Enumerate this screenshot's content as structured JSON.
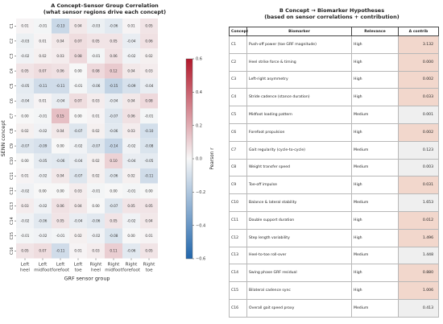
{
  "heatmap_title": "A  Concept–Sensor Group Correlation",
  "heatmap_subtitle": "(what sensor regions drive each concept)",
  "table_title": "B  Concept → Biomarker Hypotheses",
  "table_subtitle": "(based on sensor correlations + contribution)",
  "colors": {
    "negative": "#2166ac",
    "neutral": "#f7f7f7",
    "positive": "#b2182b",
    "relevance_high": "#f2d7cc"
  },
  "chart_data": {
    "type": "heatmap",
    "title": "A  Concept–Sensor Group Correlation",
    "subtitle": "(what sensor regions drive each concept)",
    "xlabel": "GRF sensor group",
    "ylabel": "SENN concept",
    "colorbar_label": "Pearson r",
    "colorbar_range": [
      -0.6,
      0.6
    ],
    "colorbar_ticks": [
      "0.6",
      "0.4",
      "0.2",
      "0.0",
      "−0.2",
      "−0.4",
      "−0.6"
    ],
    "x_categories": [
      "Left\nheel",
      "Left\nmidfoot",
      "Left\nforefoot",
      "Left\ntoe",
      "Right\nheel",
      "Right\nmidfoot",
      "Right\nforefoot",
      "Right\ntoe"
    ],
    "y_categories": [
      "C1",
      "C2",
      "C3",
      "C4",
      "C5",
      "C6",
      "C7",
      "C8",
      "C9",
      "C10",
      "C11",
      "C12",
      "C13",
      "C14",
      "C15",
      "C16"
    ],
    "values": [
      [
        0.01,
        -0.01,
        -0.13,
        0.04,
        -0.03,
        -0.06,
        0.01,
        0.05
      ],
      [
        -0.03,
        0.01,
        0.04,
        0.07,
        0.05,
        0.05,
        -0.04,
        0.06
      ],
      [
        -0.02,
        0.02,
        0.03,
        0.08,
        -0.01,
        0.06,
        -0.02,
        0.02
      ],
      [
        0.05,
        0.07,
        0.06,
        0.0,
        0.08,
        0.12,
        0.04,
        0.03
      ],
      [
        -0.05,
        -0.11,
        -0.11,
        -0.01,
        -0.06,
        -0.15,
        -0.09,
        -0.04
      ],
      [
        -0.04,
        0.01,
        -0.04,
        0.07,
        0.03,
        -0.04,
        0.04,
        0.08
      ],
      [
        -0.0,
        -0.01,
        0.15,
        0.0,
        0.01,
        -0.07,
        0.06,
        -0.01
      ],
      [
        0.02,
        -0.02,
        0.04,
        -0.07,
        0.02,
        -0.06,
        0.03,
        -0.1
      ],
      [
        -0.07,
        -0.09,
        0.0,
        -0.02,
        -0.07,
        -0.14,
        -0.02,
        -0.08
      ],
      [
        -0.0,
        -0.05,
        -0.06,
        -0.04,
        0.02,
        0.1,
        -0.04,
        -0.05
      ],
      [
        0.01,
        -0.02,
        0.04,
        -0.07,
        0.02,
        -0.06,
        0.02,
        -0.11
      ],
      [
        -0.02,
        -0.0,
        -0.0,
        0.03,
        -0.01,
        -0.0,
        -0.01,
        0.0
      ],
      [
        0.03,
        -0.02,
        0.06,
        0.04,
        0.0,
        -0.07,
        0.05,
        0.05
      ],
      [
        -0.02,
        -0.06,
        0.05,
        -0.04,
        -0.06,
        0.05,
        -0.02,
        0.04
      ],
      [
        -0.01,
        -0.02,
        -0.01,
        0.02,
        -0.02,
        -0.08,
        0.0,
        0.01
      ],
      [
        0.05,
        0.07,
        -0.11,
        0.01,
        0.03,
        0.11,
        -0.06,
        0.05
      ]
    ]
  },
  "table": {
    "headers": [
      "Concept",
      "Biomarker",
      "Relevance",
      "Δ contrib"
    ],
    "rows": [
      {
        "concept": "C1",
        "biomarker": "Push-off power (toe GRF magnitude)",
        "relevance": "High",
        "contrib": "3.132"
      },
      {
        "concept": "C2",
        "biomarker": "Heel strike force & timing",
        "relevance": "High",
        "contrib": "0.000"
      },
      {
        "concept": "C3",
        "biomarker": "Left-right asymmetry",
        "relevance": "High",
        "contrib": "0.002"
      },
      {
        "concept": "C4",
        "biomarker": "Stride cadence (stance duration)",
        "relevance": "High",
        "contrib": "0.033"
      },
      {
        "concept": "C5",
        "biomarker": "Midfoot loading pattern",
        "relevance": "Medium",
        "contrib": "0.001"
      },
      {
        "concept": "C6",
        "biomarker": "Forefoot propulsion",
        "relevance": "High",
        "contrib": "0.002"
      },
      {
        "concept": "C7",
        "biomarker": "Gait regularity (cycle-to-cycle)",
        "relevance": "Medium",
        "contrib": "0.123"
      },
      {
        "concept": "C8",
        "biomarker": "Weight transfer speed",
        "relevance": "Medium",
        "contrib": "0.003"
      },
      {
        "concept": "C9",
        "biomarker": "Toe-off impulse",
        "relevance": "High",
        "contrib": "0.031"
      },
      {
        "concept": "C10",
        "biomarker": "Balance & lateral stability",
        "relevance": "Medium",
        "contrib": "1.653"
      },
      {
        "concept": "C11",
        "biomarker": "Double support duration",
        "relevance": "High",
        "contrib": "0.012"
      },
      {
        "concept": "C12",
        "biomarker": "Step length variability",
        "relevance": "High",
        "contrib": "1.496"
      },
      {
        "concept": "C13",
        "biomarker": "Heel-to-toe roll-over",
        "relevance": "Medium",
        "contrib": "1.448"
      },
      {
        "concept": "C14",
        "biomarker": "Swing phase GRF residual",
        "relevance": "High",
        "contrib": "0.880"
      },
      {
        "concept": "C15",
        "biomarker": "Bilateral cadence sync",
        "relevance": "High",
        "contrib": "1.006"
      },
      {
        "concept": "C16",
        "biomarker": "Overall gait speed proxy",
        "relevance": "Medium",
        "contrib": "0.413"
      }
    ]
  }
}
